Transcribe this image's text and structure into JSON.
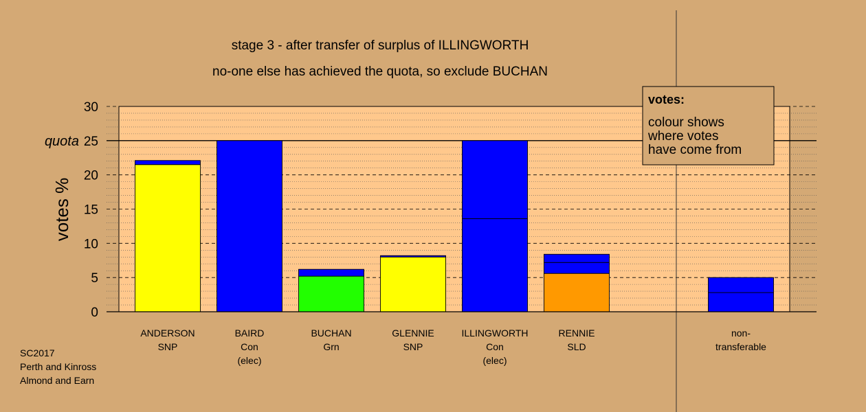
{
  "chart_data": {
    "type": "bar",
    "stacked": true,
    "title": "stage 3 - after transfer of surplus of ILLINGWORTH",
    "subtitle": "no-one else has achieved the quota, so exclude BUCHAN",
    "ylabel": "votes %",
    "ylim": [
      0,
      30
    ],
    "yticks": [
      0,
      5,
      10,
      15,
      20,
      25,
      30
    ],
    "quota": 25,
    "quota_label": "quota",
    "grid": true,
    "colors": {
      "SNP": "#ffff00",
      "Con": "#0000ff",
      "Grn": "#22ff00",
      "SLD": "#ff9900",
      "background": "#d4a975",
      "plot_background": "#ffc88c"
    },
    "categories": [
      {
        "name": "ANDERSON",
        "party": "SNP",
        "status": "",
        "segments": [
          {
            "source": "SNP",
            "value": 21.5
          },
          {
            "source": "Con",
            "value": 0.6
          }
        ]
      },
      {
        "name": "BAIRD",
        "party": "Con",
        "status": "(elec)",
        "segments": [
          {
            "source": "Con",
            "value": 25
          }
        ]
      },
      {
        "name": "BUCHAN",
        "party": "Grn",
        "status": "",
        "segments": [
          {
            "source": "Grn",
            "value": 5.2
          },
          {
            "source": "Con",
            "value": 1.0
          }
        ]
      },
      {
        "name": "GLENNIE",
        "party": "SNP",
        "status": "",
        "segments": [
          {
            "source": "SNP",
            "value": 8.0
          },
          {
            "source": "Con",
            "value": 0.2
          }
        ]
      },
      {
        "name": "ILLINGWORTH",
        "party": "Con",
        "status": "(elec)",
        "segments": [
          {
            "source": "Con",
            "value": 13.6
          },
          {
            "source": "Con",
            "value": 11.4
          }
        ]
      },
      {
        "name": "RENNIE",
        "party": "SLD",
        "status": "",
        "segments": [
          {
            "source": "SLD",
            "value": 5.6
          },
          {
            "source": "Con",
            "value": 1.6
          },
          {
            "source": "Con",
            "value": 1.2
          }
        ]
      }
    ],
    "nontransferable": {
      "label_line1": "non-",
      "label_line2": "transferable",
      "segments": [
        {
          "source": "Con",
          "value": 2.8
        },
        {
          "source": "Con",
          "value": 2.2
        }
      ]
    },
    "legend": {
      "title": "votes:",
      "lines": [
        "colour shows",
        "where votes",
        "have come from"
      ],
      "placement": "top-right"
    }
  },
  "footer": {
    "lines": [
      "SC2017",
      "Perth and Kinross",
      "Almond and Earn"
    ]
  }
}
